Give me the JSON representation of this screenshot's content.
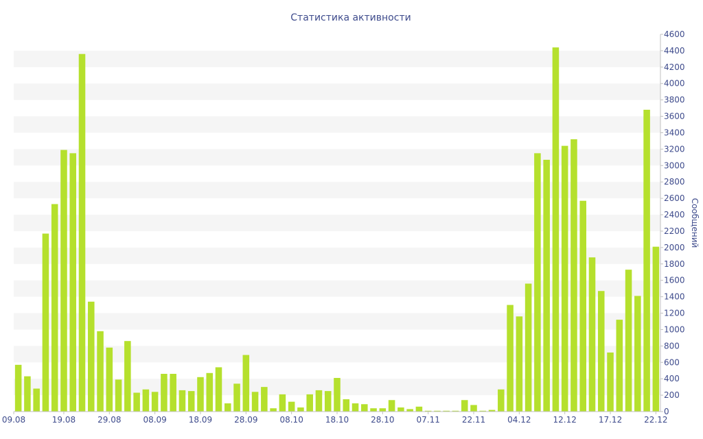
{
  "chart_data": {
    "type": "bar",
    "title": "Статистика активности",
    "xlabel": "",
    "ylabel": "Сообщений",
    "ylim": [
      0,
      4600
    ],
    "ytick_step": 200,
    "y_axis_side": "right",
    "grid": "alternating horizontal bands",
    "bar_color": "#b5e02d",
    "band_color": "#f5f5f5",
    "text_color": "#3e4b8c",
    "x_tick_labels": [
      {
        "index": 0,
        "label": "09.08"
      },
      {
        "index": 5,
        "label": "19.08"
      },
      {
        "index": 10,
        "label": "29.08"
      },
      {
        "index": 15,
        "label": "08.09"
      },
      {
        "index": 20,
        "label": "18.09"
      },
      {
        "index": 25,
        "label": "28.09"
      },
      {
        "index": 30,
        "label": "08.10"
      },
      {
        "index": 35,
        "label": "18.10"
      },
      {
        "index": 40,
        "label": "28.10"
      },
      {
        "index": 45,
        "label": "07.11"
      },
      {
        "index": 50,
        "label": "22.11"
      },
      {
        "index": 55,
        "label": "04.12"
      },
      {
        "index": 60,
        "label": "12.12"
      },
      {
        "index": 65,
        "label": "17.12"
      },
      {
        "index": 70,
        "label": "22.12"
      }
    ],
    "values": [
      570,
      430,
      280,
      2170,
      2530,
      3190,
      3150,
      4360,
      1340,
      980,
      780,
      390,
      860,
      230,
      270,
      240,
      460,
      460,
      260,
      250,
      420,
      470,
      540,
      100,
      340,
      690,
      240,
      300,
      40,
      210,
      120,
      50,
      210,
      260,
      250,
      410,
      150,
      100,
      90,
      40,
      40,
      140,
      50,
      30,
      60,
      10,
      10,
      10,
      10,
      140,
      80,
      10,
      20,
      270,
      1300,
      1160,
      1560,
      3150,
      3070,
      4440,
      3240,
      3320,
      2570,
      1880,
      1470,
      720,
      1120,
      1730,
      1410,
      3680,
      2010
    ]
  }
}
